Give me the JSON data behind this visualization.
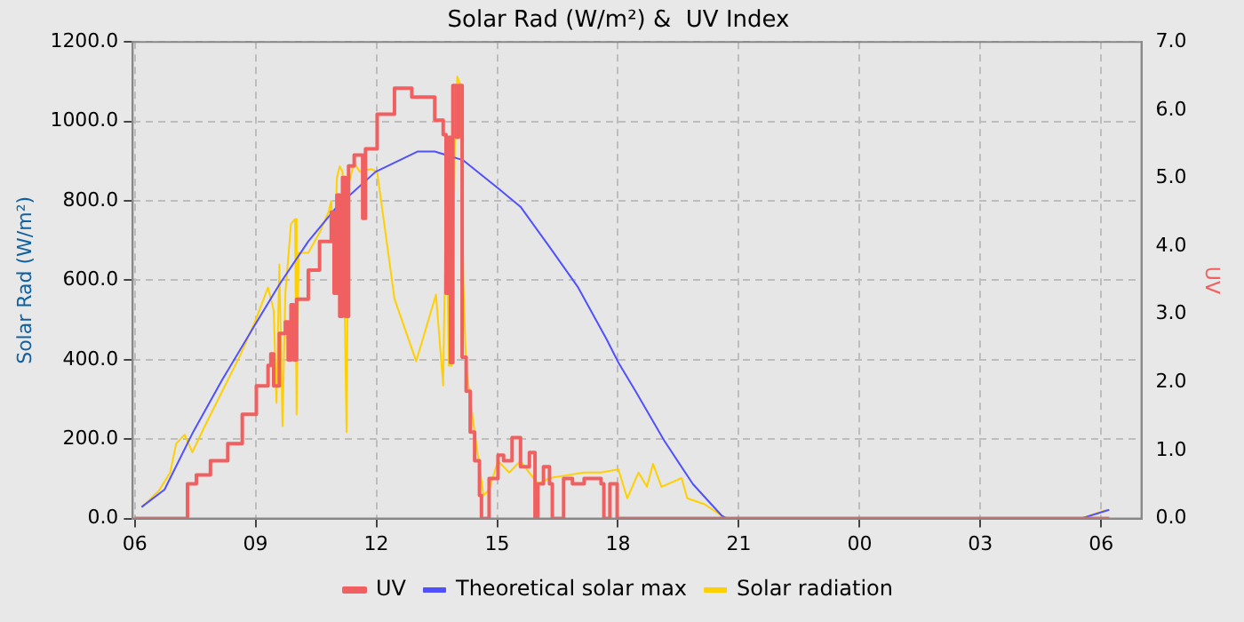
{
  "chart_data": {
    "type": "line",
    "title": "Solar Rad (W/m²) &  UV Index",
    "ylabel": "Solar Rad (W/m²)",
    "y2label": "UV",
    "xlim": [
      5.95,
      31
    ],
    "xticks": [
      {
        "value": 6,
        "label": "06"
      },
      {
        "value": 9,
        "label": "09"
      },
      {
        "value": 12,
        "label": "12"
      },
      {
        "value": 15,
        "label": "15"
      },
      {
        "value": 18,
        "label": "18"
      },
      {
        "value": 21,
        "label": "21"
      },
      {
        "value": 24,
        "label": "00"
      },
      {
        "value": 27,
        "label": "03"
      },
      {
        "value": 30,
        "label": "06"
      }
    ],
    "ylim": [
      0,
      1200
    ],
    "yticks": [
      {
        "value": 0,
        "label": "0.0"
      },
      {
        "value": 200,
        "label": "200.0"
      },
      {
        "value": 400,
        "label": "400.0"
      },
      {
        "value": 600,
        "label": "600.0"
      },
      {
        "value": 800,
        "label": "800.0"
      },
      {
        "value": 1000,
        "label": "1000.0"
      },
      {
        "value": 1200,
        "label": "1200.0"
      }
    ],
    "y2lim": [
      0,
      7
    ],
    "y2ticks": [
      {
        "value": 0,
        "label": "0.0"
      },
      {
        "value": 1,
        "label": "1.0"
      },
      {
        "value": 2,
        "label": "2.0"
      },
      {
        "value": 3,
        "label": "3.0"
      },
      {
        "value": 4,
        "label": "4.0"
      },
      {
        "value": 5,
        "label": "5.0"
      },
      {
        "value": 6,
        "label": "6.0"
      },
      {
        "value": 7,
        "label": "7.0"
      }
    ],
    "grid": true,
    "legend": "bottom",
    "marker": "none",
    "series": [
      {
        "name": "Solar radiation",
        "color": "#ffd000",
        "x": [
          6.17,
          6.6,
          6.88,
          7.03,
          7.24,
          7.43,
          7.74,
          8.6,
          8.98,
          9.31,
          9.45,
          9.52,
          9.59,
          9.67,
          9.74,
          9.88,
          9.98,
          10.02,
          10.07,
          10.31,
          10.59,
          10.81,
          10.88,
          10.95,
          11.02,
          11.09,
          11.16,
          11.26,
          11.31,
          11.45,
          11.59,
          11.87,
          12.02,
          12.45,
          12.99,
          13.48,
          13.66,
          13.73,
          13.8,
          13.87,
          13.95,
          14.01,
          14.09,
          14.16,
          14.23,
          14.44,
          14.66,
          14.8,
          15.02,
          15.3,
          15.58,
          16.01,
          16.3,
          16.73,
          17.16,
          17.58,
          18.01,
          18.23,
          18.51,
          18.72,
          18.87,
          19.08,
          19.58,
          19.72,
          20.15,
          20.58,
          20.72,
          29.49,
          29.99,
          30.15
        ],
        "values": [
          28,
          70,
          116,
          189,
          211,
          167,
          233,
          407,
          494,
          582,
          524,
          291,
          640,
          233,
          567,
          742,
          754,
          262,
          669,
          669,
          720,
          771,
          800,
          640,
          858,
          887,
          873,
          218,
          843,
          895,
          873,
          880,
          873,
          553,
          396,
          564,
          335,
          829,
          385,
          385,
          953,
          1113,
          1091,
          597,
          378,
          218,
          58,
          73,
          145,
          116,
          145,
          87,
          102,
          109,
          116,
          116,
          124,
          51,
          116,
          80,
          138,
          80,
          102,
          51,
          36,
          7,
          0,
          0,
          17,
          22
        ]
      },
      {
        "name": "Theoretical solar max",
        "color": "#5050ff",
        "x": [
          6.17,
          6.74,
          7.45,
          8.17,
          8.98,
          9.59,
          10.31,
          11.02,
          11.98,
          13.02,
          13.45,
          14.16,
          15.02,
          15.58,
          16.3,
          17.01,
          17.72,
          18.01,
          18.44,
          19.15,
          19.86,
          20.58,
          20.7,
          29.49,
          30.2
        ],
        "values": [
          29,
          73,
          218,
          349,
          487,
          589,
          698,
          785,
          873,
          924,
          924,
          902,
          832,
          785,
          684,
          582,
          451,
          393,
          320,
          196,
          87,
          7,
          0,
          0,
          22
        ]
      },
      {
        "name": "UV",
        "color": "#f06060",
        "type": "step",
        "axis": "y2",
        "x": [
          6.0,
          7.31,
          7.53,
          7.88,
          8.31,
          8.67,
          9.02,
          9.31,
          9.38,
          9.45,
          9.59,
          9.74,
          9.81,
          9.88,
          9.95,
          10.02,
          10.31,
          10.59,
          10.88,
          10.95,
          11.02,
          11.09,
          11.16,
          11.23,
          11.31,
          11.45,
          11.66,
          11.73,
          12.02,
          12.45,
          12.88,
          13.45,
          13.66,
          13.73,
          13.8,
          13.84,
          13.9,
          13.99,
          14.04,
          14.13,
          14.23,
          14.33,
          14.44,
          14.56,
          14.61,
          14.73,
          14.8,
          15.02,
          15.16,
          15.37,
          15.58,
          15.8,
          15.94,
          16.01,
          16.15,
          16.3,
          16.37,
          16.58,
          16.65,
          16.87,
          17.16,
          17.58,
          17.65,
          17.8,
          17.98,
          30.2
        ],
        "values": [
          0,
          0.51,
          0.64,
          0.85,
          1.1,
          1.53,
          1.95,
          2.25,
          2.42,
          1.95,
          2.72,
          2.89,
          2.33,
          3.14,
          2.33,
          3.22,
          3.65,
          4.07,
          4.5,
          3.31,
          4.75,
          2.97,
          5.01,
          2.97,
          5.18,
          5.34,
          4.41,
          5.43,
          5.94,
          6.32,
          6.19,
          5.85,
          5.64,
          3.31,
          5.6,
          2.29,
          6.36,
          5.6,
          6.36,
          2.37,
          1.87,
          1.27,
          0.85,
          0.34,
          0,
          0,
          0.59,
          0.93,
          0.85,
          1.19,
          0.76,
          0.97,
          0,
          0.51,
          0.76,
          0.51,
          0,
          0,
          0.59,
          0.51,
          0.59,
          0.51,
          0,
          0.51,
          0,
          0
        ]
      }
    ]
  }
}
